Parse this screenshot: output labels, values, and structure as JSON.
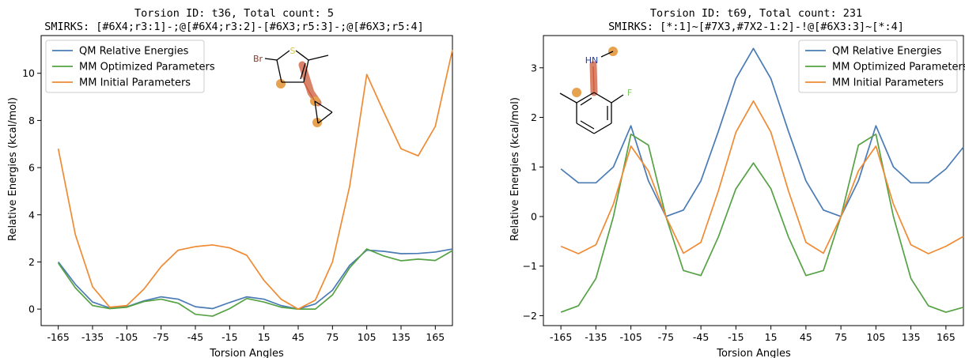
{
  "colors": {
    "qm": "#4a7bb5",
    "mm_opt": "#55a244",
    "mm_init": "#f08a33",
    "highlight": "#cc5a3a",
    "atom_highlight": "#e6a24f",
    "sulfur": "#d9c84a",
    "bromine": "#8b3a2a",
    "fluorine": "#7ac55a",
    "nitrogen": "#2a3a9a"
  },
  "icons": [
    "molecule-thiophene-cyclopropyl",
    "molecule-fluoroaniline"
  ],
  "chart_data": [
    {
      "type": "line",
      "title": "Torsion ID: t36, Total count: 5",
      "subtitle": "SMIRKS: [#6X4;r3:1]-;@[#6X4;r3:2]-[#6X3;r5:3]-;@[#6X3;r5:4]",
      "xlabel": "Torsion Angles",
      "ylabel": "Relative Energies (kcal/mol)",
      "xlim": [
        -180,
        180
      ],
      "ylim": [
        -0.7,
        11.6
      ],
      "xticks": [
        -165,
        -135,
        -105,
        -75,
        -45,
        -15,
        15,
        45,
        75,
        105,
        135,
        165
      ],
      "yticks": [
        0,
        2,
        4,
        6,
        8,
        10
      ],
      "legend_position": "top-left",
      "x": [
        -165,
        -150,
        -135,
        -120,
        -105,
        -90,
        -75,
        -60,
        -45,
        -30,
        -15,
        0,
        15,
        30,
        45,
        60,
        75,
        90,
        105,
        120,
        135,
        150,
        165,
        180
      ],
      "series": [
        {
          "name": "QM Relative Energies",
          "color_key": "qm",
          "values": [
            2.0,
            1.05,
            0.3,
            0.05,
            0.1,
            0.35,
            0.52,
            0.42,
            0.1,
            0.02,
            0.28,
            0.52,
            0.42,
            0.15,
            0.0,
            0.22,
            0.8,
            1.85,
            2.5,
            2.45,
            2.35,
            2.36,
            2.42,
            2.55
          ]
        },
        {
          "name": "MM Optimized Parameters",
          "color_key": "mm_opt",
          "values": [
            1.95,
            0.9,
            0.15,
            0.02,
            0.08,
            0.32,
            0.42,
            0.25,
            -0.22,
            -0.3,
            0.02,
            0.45,
            0.3,
            0.08,
            0.0,
            0.0,
            0.6,
            1.75,
            2.55,
            2.25,
            2.05,
            2.12,
            2.06,
            2.48
          ]
        },
        {
          "name": "MM Initial Parameters",
          "color_key": "mm_init",
          "values": [
            6.8,
            3.15,
            0.95,
            0.08,
            0.15,
            0.85,
            1.8,
            2.5,
            2.65,
            2.72,
            2.6,
            2.28,
            1.22,
            0.42,
            0.0,
            0.38,
            2.0,
            5.2,
            9.95,
            8.35,
            6.8,
            6.5,
            7.75,
            11.0
          ]
        }
      ],
      "molecule": {
        "labels": [
          "Br",
          "S"
        ]
      }
    },
    {
      "type": "line",
      "title": "Torsion ID: t69, Total count: 231",
      "subtitle": "SMIRKS: [*:1]~[#7X3,#7X2-1:2]-!@[#6X3:3]~[*:4]",
      "xlabel": "Torsion Angles",
      "ylabel": "Relative Energies (kcal/mol)",
      "xlim": [
        -180,
        180
      ],
      "ylim": [
        -2.2,
        3.65
      ],
      "xticks": [
        -165,
        -135,
        -105,
        -75,
        -45,
        -15,
        15,
        45,
        75,
        105,
        135,
        165
      ],
      "yticks": [
        -2,
        -1,
        0,
        1,
        2,
        3
      ],
      "legend_position": "top-right",
      "x": [
        -165,
        -150,
        -135,
        -120,
        -105,
        -90,
        -75,
        -60,
        -45,
        -30,
        -15,
        0,
        15,
        30,
        45,
        60,
        75,
        90,
        105,
        120,
        135,
        150,
        165,
        180
      ],
      "series": [
        {
          "name": "QM Relative Energies",
          "color_key": "qm",
          "values": [
            0.96,
            0.68,
            0.68,
            1.0,
            1.83,
            0.72,
            0.0,
            0.13,
            0.72,
            1.72,
            2.78,
            3.39,
            2.78,
            1.72,
            0.72,
            0.13,
            0.0,
            0.72,
            1.83,
            1.0,
            0.68,
            0.68,
            0.96,
            1.4
          ]
        },
        {
          "name": "MM Optimized Parameters",
          "color_key": "mm_opt",
          "values": [
            -1.93,
            -1.8,
            -1.25,
            0.0,
            1.66,
            1.44,
            0.0,
            -1.09,
            -1.19,
            -0.41,
            0.56,
            1.08,
            0.56,
            -0.41,
            -1.19,
            -1.09,
            0.0,
            1.44,
            1.66,
            0.0,
            -1.25,
            -1.8,
            -1.93,
            -1.83
          ]
        },
        {
          "name": "MM Initial Parameters",
          "color_key": "mm_init",
          "values": [
            -0.6,
            -0.75,
            -0.57,
            0.25,
            1.42,
            0.92,
            0.0,
            -0.74,
            -0.52,
            0.52,
            1.7,
            2.33,
            1.7,
            0.52,
            -0.52,
            -0.74,
            0.0,
            0.92,
            1.42,
            0.25,
            -0.57,
            -0.75,
            -0.6,
            -0.4
          ]
        }
      ],
      "molecule": {
        "labels": [
          "HN",
          "F"
        ]
      }
    }
  ]
}
